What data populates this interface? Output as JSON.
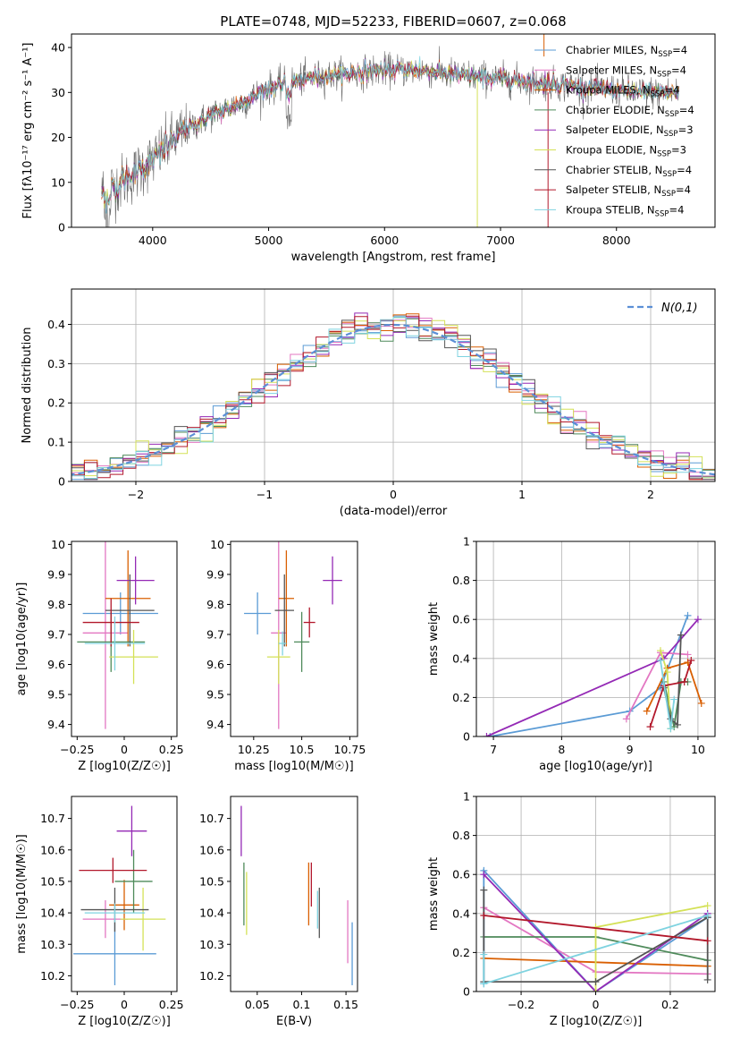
{
  "title": "PLATE=0748, MJD=52233, FIBERID=0607, z=0.068",
  "colors": [
    "#5b9bd5",
    "#e377c2",
    "#d95f02",
    "#4e8a5a",
    "#9429b5",
    "#d4e157",
    "#555555",
    "#b2182b",
    "#7fd3e0"
  ],
  "chart_data": [
    {
      "id": "spectrum",
      "type": "line",
      "xlabel": "wavelength [Angstrom, rest frame]",
      "ylabel": "Flux [fλ10⁻¹⁷ erg cm⁻² s⁻¹ A⁻¹]",
      "xlim": [
        3300,
        8850
      ],
      "ylim": [
        0,
        43
      ],
      "xticks": [
        4000,
        5000,
        6000,
        7000,
        8000
      ],
      "yticks": [
        0,
        10,
        20,
        30,
        40
      ],
      "grid": false,
      "legend_position": "right",
      "legend": [
        {
          "name": "Chabrier MILES, N",
          "sub": "SSP",
          "tail": "=4"
        },
        {
          "name": "Salpeter MILES, N",
          "sub": "SSP",
          "tail": "=4"
        },
        {
          "name": "Kroupa MILES, N",
          "sub": "SSP",
          "tail": "=4"
        },
        {
          "name": "Chabrier ELODIE, N",
          "sub": "SSP",
          "tail": "=4"
        },
        {
          "name": "Salpeter ELODIE, N",
          "sub": "SSP",
          "tail": "=3"
        },
        {
          "name": "Kroupa ELODIE, N",
          "sub": "SSP",
          "tail": "=3"
        },
        {
          "name": "Chabrier STELIB, N",
          "sub": "SSP",
          "tail": "=4"
        },
        {
          "name": "Salpeter STELIB, N",
          "sub": "SSP",
          "tail": "=4"
        },
        {
          "name": "Kroupa STELIB, N",
          "sub": "SSP",
          "tail": "=4"
        }
      ],
      "data_trend": {
        "x": [
          3600,
          3800,
          4000,
          4200,
          4500,
          4800,
          5000,
          5300,
          5600,
          6000,
          6300,
          6600,
          7000,
          7400,
          7800,
          8200,
          8500
        ],
        "y": [
          8,
          11,
          15,
          20,
          25,
          28,
          31,
          33,
          34,
          35,
          35,
          34,
          33,
          32,
          31,
          30,
          30
        ]
      }
    },
    {
      "id": "residuals",
      "type": "line",
      "xlabel": "(data-model)/error",
      "ylabel": "Normed distribution",
      "xlim": [
        -2.5,
        2.5
      ],
      "ylim": [
        0,
        0.49
      ],
      "xticks": [
        -2,
        -1,
        0,
        1,
        2
      ],
      "yticks": [
        0.0,
        0.1,
        0.2,
        0.3,
        0.4
      ],
      "grid": true,
      "legend": "N(0,1)",
      "legend_position": "top-right",
      "legend_style": "dashed"
    },
    {
      "id": "age_vs_Z",
      "type": "scatter",
      "xlabel": "Z [log10(Z/Z☉)]",
      "ylabel": "age  [log10(age/yr)]",
      "xlim": [
        -0.28,
        0.28
      ],
      "ylim": [
        9.36,
        10.01
      ],
      "xticks": [
        -0.25,
        0.0,
        0.25
      ],
      "yticks": [
        9.4,
        9.5,
        9.6,
        9.7,
        9.8,
        9.9,
        10.0
      ],
      "points": [
        {
          "x": -0.02,
          "y": 9.77,
          "xerr": 0.2,
          "yerr": 0.07
        },
        {
          "x": -0.1,
          "y": 9.705,
          "xerr": 0.12,
          "yerr": 0.32
        },
        {
          "x": 0.02,
          "y": 9.82,
          "xerr": 0.12,
          "yerr": 0.16
        },
        {
          "x": -0.07,
          "y": 9.675,
          "xerr": 0.18,
          "yerr": 0.1
        },
        {
          "x": 0.06,
          "y": 9.88,
          "xerr": 0.1,
          "yerr": 0.08
        },
        {
          "x": 0.05,
          "y": 9.625,
          "xerr": 0.13,
          "yerr": 0.09
        },
        {
          "x": 0.03,
          "y": 9.78,
          "xerr": 0.13,
          "yerr": 0.12
        },
        {
          "x": -0.07,
          "y": 9.74,
          "xerr": 0.15,
          "yerr": 0.08
        },
        {
          "x": -0.05,
          "y": 9.67,
          "xerr": 0.16,
          "yerr": 0.09
        }
      ]
    },
    {
      "id": "age_vs_mass",
      "type": "scatter",
      "xlabel": "mass [log10(M/M☉)]",
      "ylabel": "",
      "xlim": [
        10.13,
        10.79
      ],
      "ylim": [
        9.36,
        10.01
      ],
      "xticks": [
        10.25,
        10.5,
        10.75
      ],
      "yticks": [
        9.4,
        9.5,
        9.6,
        9.7,
        9.8,
        9.9,
        10.0
      ],
      "points": [
        {
          "x": 10.27,
          "y": 9.77,
          "xerr": 0.07,
          "yerr": 0.07
        },
        {
          "x": 10.38,
          "y": 9.705,
          "xerr": 0.04,
          "yerr": 0.32
        },
        {
          "x": 10.42,
          "y": 9.82,
          "xerr": 0.04,
          "yerr": 0.16
        },
        {
          "x": 10.5,
          "y": 9.675,
          "xerr": 0.04,
          "yerr": 0.1
        },
        {
          "x": 10.66,
          "y": 9.88,
          "xerr": 0.05,
          "yerr": 0.08
        },
        {
          "x": 10.38,
          "y": 9.625,
          "xerr": 0.06,
          "yerr": 0.09
        },
        {
          "x": 10.41,
          "y": 9.78,
          "xerr": 0.05,
          "yerr": 0.12
        },
        {
          "x": 10.54,
          "y": 9.74,
          "xerr": 0.03,
          "yerr": 0.05
        },
        {
          "x": 10.4,
          "y": 9.67,
          "xerr": 0.02,
          "yerr": 0.04
        }
      ]
    },
    {
      "id": "weight_vs_age",
      "type": "line",
      "xlabel": "age  [log10(age/yr)]",
      "ylabel": "mass weight",
      "xlim": [
        6.75,
        10.25
      ],
      "ylim": [
        0,
        1
      ],
      "xticks": [
        7,
        8,
        9,
        10
      ],
      "yticks": [
        0.0,
        0.2,
        0.4,
        0.6,
        0.8,
        1.0
      ],
      "grid": true,
      "series": [
        {
          "x": [
            6.95,
            9.0,
            9.45,
            9.85
          ],
          "y": [
            0.0,
            0.13,
            0.25,
            0.62
          ]
        },
        {
          "x": [
            8.95,
            9.45,
            9.85
          ],
          "y": [
            0.09,
            0.43,
            0.42
          ]
        },
        {
          "x": [
            9.25,
            9.55,
            9.85,
            10.05
          ],
          "y": [
            0.13,
            0.35,
            0.38,
            0.17
          ]
        },
        {
          "x": [
            9.5,
            9.65,
            9.75,
            9.85
          ],
          "y": [
            0.28,
            0.05,
            0.28,
            0.28
          ]
        },
        {
          "x": [
            6.9,
            9.5,
            10.0
          ],
          "y": [
            0.0,
            0.4,
            0.6
          ]
        },
        {
          "x": [
            9.45,
            9.55,
            9.6
          ],
          "y": [
            0.44,
            0.33,
            0.04
          ]
        },
        {
          "x": [
            9.5,
            9.6,
            9.7,
            9.75
          ],
          "y": [
            0.25,
            0.09,
            0.06,
            0.52
          ]
        },
        {
          "x": [
            9.3,
            9.5,
            9.8,
            9.9
          ],
          "y": [
            0.05,
            0.26,
            0.28,
            0.39
          ]
        },
        {
          "x": [
            9.45,
            9.6,
            9.65
          ],
          "y": [
            0.39,
            0.04,
            0.19
          ]
        }
      ]
    },
    {
      "id": "mass_vs_Z",
      "type": "scatter",
      "xlabel": "Z [log10(Z/Z☉)]",
      "ylabel": "mass [log10(M/M☉)]",
      "xlim": [
        -0.28,
        0.28
      ],
      "ylim": [
        10.15,
        10.77
      ],
      "xticks": [
        -0.25,
        0.0,
        0.25
      ],
      "yticks": [
        10.2,
        10.3,
        10.4,
        10.5,
        10.6,
        10.7
      ],
      "points": [
        {
          "x": -0.05,
          "y": 10.27,
          "xerr": 0.22,
          "yerr": 0.1
        },
        {
          "x": -0.1,
          "y": 10.38,
          "xerr": 0.12,
          "yerr": 0.06
        },
        {
          "x": 0.0,
          "y": 10.425,
          "xerr": 0.08,
          "yerr": 0.08
        },
        {
          "x": 0.05,
          "y": 10.5,
          "xerr": 0.1,
          "yerr": 0.1
        },
        {
          "x": 0.04,
          "y": 10.66,
          "xerr": 0.08,
          "yerr": 0.08
        },
        {
          "x": 0.1,
          "y": 10.38,
          "xerr": 0.12,
          "yerr": 0.1
        },
        {
          "x": -0.05,
          "y": 10.41,
          "xerr": 0.18,
          "yerr": 0.07
        },
        {
          "x": -0.06,
          "y": 10.535,
          "xerr": 0.18,
          "yerr": 0.04
        },
        {
          "x": -0.05,
          "y": 10.4,
          "xerr": 0.16,
          "yerr": 0.03
        }
      ]
    },
    {
      "id": "mass_vs_ebv",
      "type": "scatter",
      "xlabel": "E(B-V)",
      "ylabel": "",
      "xlim": [
        0.02,
        0.163
      ],
      "ylim": [
        10.15,
        10.77
      ],
      "xticks": [
        0.05,
        0.1,
        0.15
      ],
      "yticks": [
        10.2,
        10.3,
        10.4,
        10.5,
        10.6,
        10.7
      ],
      "points": [
        {
          "x": 0.157,
          "y": 10.27,
          "yerr": 0.1
        },
        {
          "x": 0.152,
          "y": 10.34,
          "yerr": 0.1
        },
        {
          "x": 0.108,
          "y": 10.46,
          "yerr": 0.1
        },
        {
          "x": 0.035,
          "y": 10.46,
          "yerr": 0.1
        },
        {
          "x": 0.032,
          "y": 10.66,
          "yerr": 0.08
        },
        {
          "x": 0.038,
          "y": 10.43,
          "yerr": 0.1
        },
        {
          "x": 0.12,
          "y": 10.4,
          "yerr": 0.08
        },
        {
          "x": 0.111,
          "y": 10.49,
          "yerr": 0.07
        },
        {
          "x": 0.118,
          "y": 10.41,
          "yerr": 0.06
        }
      ]
    },
    {
      "id": "weight_vs_Z",
      "type": "line",
      "xlabel": "Z [log10(Z/Z☉)]",
      "ylabel": "mass weight",
      "xlim": [
        -0.32,
        0.32
      ],
      "ylim": [
        0,
        1
      ],
      "xticks": [
        -0.2,
        0.0,
        0.2
      ],
      "yticks": [
        0.0,
        0.2,
        0.4,
        0.6,
        0.8,
        1.0
      ],
      "grid": true,
      "series": [
        {
          "x": [
            -0.3,
            -0.3,
            0.0,
            0.3,
            0.3
          ],
          "y": [
            0.04,
            0.62,
            0.0,
            0.38,
            0.38
          ]
        },
        {
          "x": [
            -0.3,
            0.0,
            0.3
          ],
          "y": [
            0.43,
            0.1,
            0.09
          ]
        },
        {
          "x": [
            -0.3,
            0.3
          ],
          "y": [
            0.17,
            0.13
          ]
        },
        {
          "x": [
            -0.3,
            0.0,
            0.3
          ],
          "y": [
            0.28,
            0.28,
            0.16
          ]
        },
        {
          "x": [
            -0.3,
            0.0,
            0.3
          ],
          "y": [
            0.6,
            0.0,
            0.4
          ]
        },
        {
          "x": [
            0.0,
            0.0,
            0.3
          ],
          "y": [
            0.0,
            0.33,
            0.44
          ]
        },
        {
          "x": [
            -0.3,
            -0.3,
            0.0,
            0.3,
            0.3
          ],
          "y": [
            0.52,
            0.05,
            0.05,
            0.38,
            0.06
          ]
        },
        {
          "x": [
            -0.3,
            0.3
          ],
          "y": [
            0.39,
            0.26
          ]
        },
        {
          "x": [
            -0.3,
            -0.3,
            0.3
          ],
          "y": [
            0.19,
            0.04,
            0.39
          ]
        }
      ]
    }
  ]
}
